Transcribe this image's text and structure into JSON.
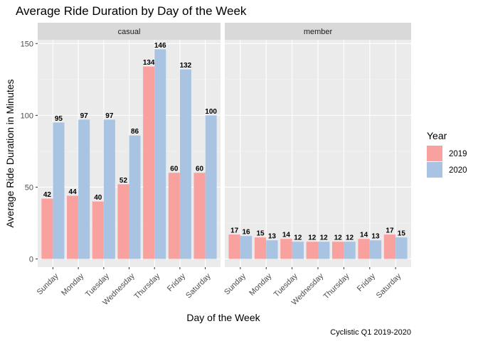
{
  "chart_data": {
    "type": "bar",
    "title": "Average Ride Duration by Day of the Week",
    "xlabel": "Day of the Week",
    "ylabel": "Average Ride Duration in Minutes",
    "caption": "Cyclistic Q1 2019-2020",
    "ylim": [
      0,
      155
    ],
    "yticks": [
      0,
      50,
      100,
      150
    ],
    "grid": true,
    "legend": {
      "title": "Year",
      "position": "right"
    },
    "categories": [
      "Sunday",
      "Monday",
      "Tuesday",
      "Wednesday",
      "Thursday",
      "Friday",
      "Saturday"
    ],
    "colors": {
      "2019": "#F8A19F",
      "2020": "#A9C4E2"
    },
    "panels": [
      {
        "name": "casual",
        "series": [
          {
            "name": "2019",
            "values": [
              42,
              44,
              40,
              52,
              134,
              60,
              60
            ]
          },
          {
            "name": "2020",
            "values": [
              95,
              97,
              97,
              86,
              146,
              132,
              100
            ]
          }
        ]
      },
      {
        "name": "member",
        "series": [
          {
            "name": "2019",
            "values": [
              17,
              15,
              14,
              12,
              12,
              14,
              17
            ]
          },
          {
            "name": "2020",
            "values": [
              16,
              13,
              12,
              12,
              12,
              13,
              15
            ]
          }
        ]
      }
    ]
  }
}
